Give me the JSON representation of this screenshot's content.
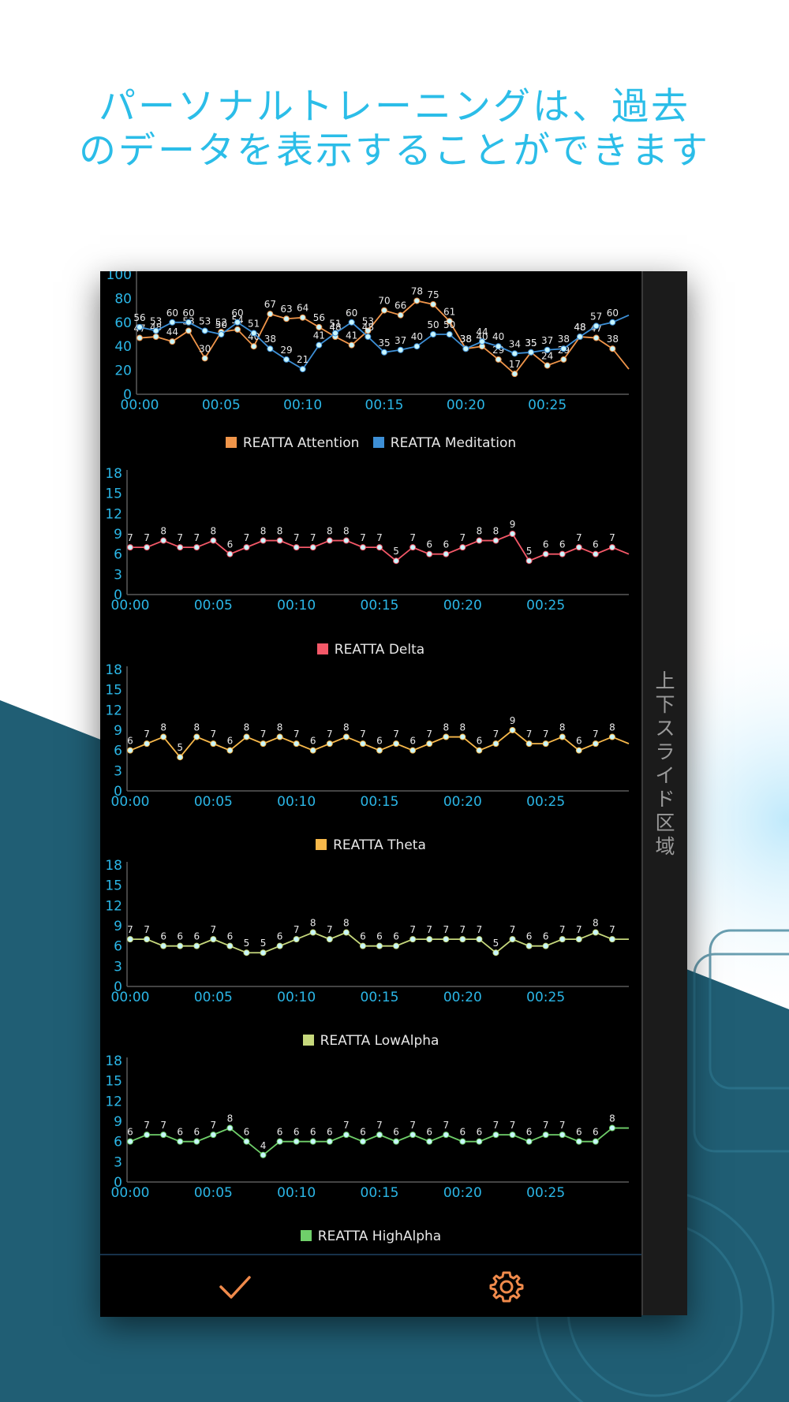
{
  "headline": {
    "line1": "パーソナルトレーニングは、過去",
    "line2": "のデータを表示することができます"
  },
  "sidebar": {
    "label": "上下スライド区域"
  },
  "colors": {
    "headline": "#2bbde8",
    "axis_text": "#2bb6e6",
    "point_fill": "#c8f6ff",
    "attention": "#f0954a",
    "meditation": "#3d8fd6",
    "delta": "#f45868",
    "theta": "#f7b84a",
    "lowalpha": "#c6d87c",
    "highalpha": "#6fcf6a",
    "tab_icon": "#f08a4b"
  },
  "bottom_bar": {
    "confirm_icon": "checkmark-icon",
    "settings_icon": "gear-icon"
  },
  "chart_data": [
    {
      "type": "line",
      "x_tick_labels": [
        "00:00",
        "00:05",
        "00:10",
        "00:15",
        "00:20",
        "00:25"
      ],
      "y_ticks": [
        0,
        20,
        40,
        60,
        80,
        100
      ],
      "ylim": [
        0,
        100
      ],
      "grid": false,
      "legend_placement": "bottom-center",
      "series": [
        {
          "name": "REATTA Attention",
          "color": "#f0954a",
          "values": [
            47,
            48,
            44,
            53,
            30,
            52,
            54,
            40,
            67,
            63,
            64,
            56,
            48,
            41,
            53,
            70,
            66,
            78,
            75,
            61,
            38,
            40,
            29,
            17,
            35,
            24,
            29,
            48,
            47,
            38,
            21
          ]
        },
        {
          "name": "REATTA Meditation",
          "color": "#3d8fd6",
          "values": [
            56,
            53,
            60,
            60,
            53,
            50,
            60,
            51,
            38,
            29,
            21,
            41,
            51,
            60,
            48,
            35,
            37,
            40,
            50,
            50,
            38,
            44,
            40,
            34,
            35,
            37,
            38,
            48,
            57,
            60,
            66
          ]
        }
      ]
    },
    {
      "type": "line",
      "x_tick_labels": [
        "00:00",
        "00:05",
        "00:10",
        "00:15",
        "00:20",
        "00:25"
      ],
      "y_ticks": [
        0,
        3,
        6,
        9,
        12,
        15,
        18
      ],
      "ylim": [
        0,
        18
      ],
      "grid": false,
      "legend_placement": "bottom-center",
      "series": [
        {
          "name": "REATTA Delta",
          "color": "#f45868",
          "values": [
            7,
            7,
            8,
            7,
            7,
            8,
            6,
            7,
            8,
            8,
            7,
            7,
            8,
            8,
            7,
            7,
            5,
            7,
            6,
            6,
            7,
            8,
            8,
            9,
            5,
            6,
            6,
            7,
            6,
            7,
            6
          ]
        }
      ]
    },
    {
      "type": "line",
      "x_tick_labels": [
        "00:00",
        "00:05",
        "00:10",
        "00:15",
        "00:20",
        "00:25"
      ],
      "y_ticks": [
        0,
        3,
        6,
        9,
        12,
        15,
        18
      ],
      "ylim": [
        0,
        18
      ],
      "grid": false,
      "legend_placement": "bottom-center",
      "series": [
        {
          "name": "REATTA Theta",
          "color": "#f7b84a",
          "values": [
            6,
            7,
            8,
            5,
            8,
            7,
            6,
            8,
            7,
            8,
            7,
            6,
            7,
            8,
            7,
            6,
            7,
            6,
            7,
            8,
            8,
            6,
            7,
            9,
            7,
            7,
            8,
            6,
            7,
            8,
            7
          ]
        }
      ]
    },
    {
      "type": "line",
      "x_tick_labels": [
        "00:00",
        "00:05",
        "00:10",
        "00:15",
        "00:20",
        "00:25"
      ],
      "y_ticks": [
        0,
        3,
        6,
        9,
        12,
        15,
        18
      ],
      "ylim": [
        0,
        18
      ],
      "grid": false,
      "legend_placement": "bottom-center",
      "series": [
        {
          "name": "REATTA LowAlpha",
          "color": "#c6d87c",
          "values": [
            7,
            7,
            6,
            6,
            6,
            7,
            6,
            5,
            5,
            6,
            7,
            8,
            7,
            8,
            6,
            6,
            6,
            7,
            7,
            7,
            7,
            7,
            5,
            7,
            6,
            6,
            7,
            7,
            8,
            7,
            7
          ]
        }
      ]
    },
    {
      "type": "line",
      "x_tick_labels": [
        "00:00",
        "00:05",
        "00:10",
        "00:15",
        "00:20",
        "00:25"
      ],
      "y_ticks": [
        0,
        3,
        6,
        9,
        12,
        15,
        18
      ],
      "ylim": [
        0,
        18
      ],
      "grid": false,
      "legend_placement": "bottom-center",
      "series": [
        {
          "name": "REATTA HighAlpha",
          "color": "#6fcf6a",
          "values": [
            6,
            7,
            7,
            6,
            6,
            7,
            8,
            6,
            4,
            6,
            6,
            6,
            6,
            7,
            6,
            7,
            6,
            7,
            6,
            7,
            6,
            6,
            7,
            7,
            6,
            7,
            7,
            6,
            6,
            8,
            8
          ]
        }
      ]
    }
  ]
}
